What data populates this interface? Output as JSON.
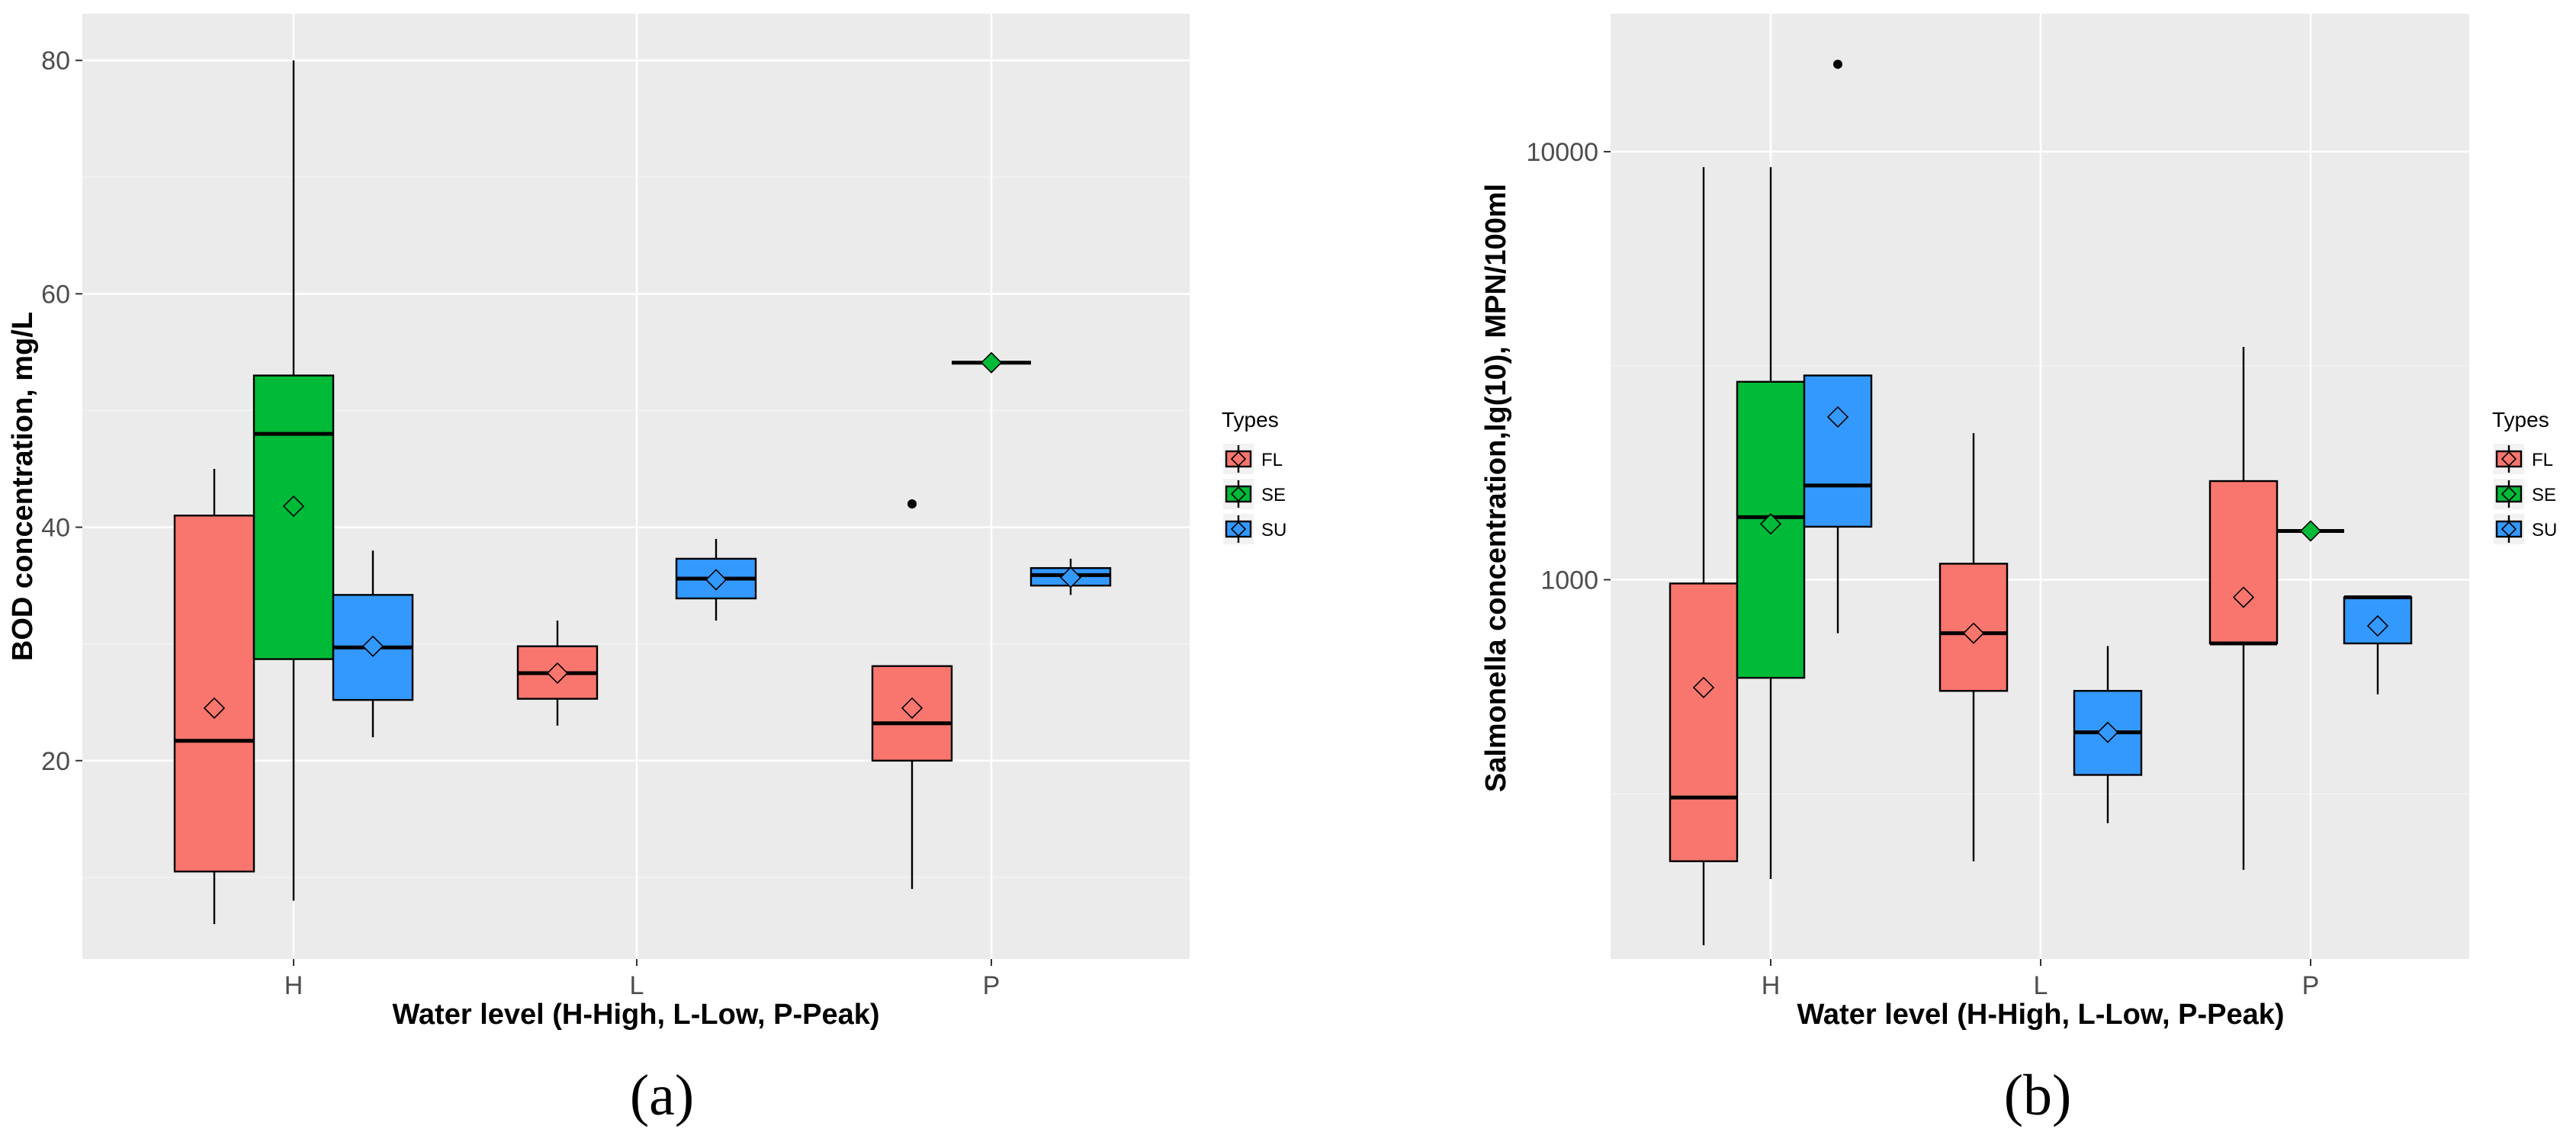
{
  "legend_title": "Types",
  "types": [
    "FL",
    "SE",
    "SU"
  ],
  "colors": {
    "FL": "#f8766d",
    "SE": "#00ba38",
    "SU": "#3399ff"
  },
  "chart_data": [
    {
      "type": "boxplot",
      "caption": "(a)",
      "xlabel": "Water level (H-High, L-Low, P-Peak)",
      "ylabel": "BOD concentration, mg/L",
      "categories": [
        "H",
        "L",
        "P"
      ],
      "ylim": [
        3,
        84
      ],
      "yticks": [
        20,
        40,
        60,
        80
      ],
      "yscale": "linear",
      "boxes": [
        {
          "category": "H",
          "type": "FL",
          "min": 6,
          "q1": 10.5,
          "median": 21.7,
          "q3": 41,
          "max": 45,
          "mean": 24.5,
          "outliers": []
        },
        {
          "category": "H",
          "type": "SE",
          "min": 8,
          "q1": 28.7,
          "median": 48,
          "q3": 53,
          "max": 80,
          "mean": 41.8,
          "outliers": []
        },
        {
          "category": "H",
          "type": "SU",
          "min": 22,
          "q1": 25.2,
          "median": 29.7,
          "q3": 34.2,
          "max": 38,
          "mean": 29.8,
          "outliers": []
        },
        {
          "category": "L",
          "type": "FL",
          "min": 23,
          "q1": 25.3,
          "median": 27.5,
          "q3": 29.8,
          "max": 32,
          "mean": 27.5,
          "outliers": []
        },
        {
          "category": "L",
          "type": "SU",
          "min": 32,
          "q1": 33.9,
          "median": 35.6,
          "q3": 37.3,
          "max": 39,
          "mean": 35.5,
          "outliers": []
        },
        {
          "category": "P",
          "type": "FL",
          "min": 9,
          "q1": 20,
          "median": 23.2,
          "q3": 28.1,
          "max": 28.1,
          "mean": 24.5,
          "outliers": [
            42
          ]
        },
        {
          "category": "P",
          "type": "SE",
          "min": 54.1,
          "q1": 54.1,
          "median": 54.1,
          "q3": 54.1,
          "max": 54.1,
          "mean": 54.1,
          "outliers": []
        },
        {
          "category": "P",
          "type": "SU",
          "min": 34.2,
          "q1": 35,
          "median": 35.9,
          "q3": 36.5,
          "max": 37.3,
          "mean": 35.7,
          "outliers": []
        }
      ]
    },
    {
      "type": "boxplot",
      "caption": "(b)",
      "xlabel": "Water level (H-High, L-Low, P-Peak)",
      "ylabel": "Salmonella concentration,lg(10), MPN/100ml",
      "categories": [
        "H",
        "L",
        "P"
      ],
      "ylim": [
        130,
        21000
      ],
      "yticks": [
        1000,
        10000
      ],
      "yscale": "log10",
      "boxes": [
        {
          "category": "H",
          "type": "FL",
          "min": 140,
          "q1": 220,
          "median": 310,
          "q3": 980,
          "max": 9200,
          "mean": 560,
          "outliers": []
        },
        {
          "category": "H",
          "type": "SE",
          "min": 200,
          "q1": 590,
          "median": 1400,
          "q3": 2900,
          "max": 9200,
          "mean": 1350,
          "outliers": []
        },
        {
          "category": "H",
          "type": "SU",
          "min": 750,
          "q1": 1330,
          "median": 1660,
          "q3": 3000,
          "max": 3000,
          "mean": 2400,
          "outliers": [
            16000
          ]
        },
        {
          "category": "L",
          "type": "FL",
          "min": 220,
          "q1": 550,
          "median": 750,
          "q3": 1090,
          "max": 2200,
          "mean": 750,
          "outliers": []
        },
        {
          "category": "L",
          "type": "SU",
          "min": 270,
          "q1": 350,
          "median": 440,
          "q3": 550,
          "max": 700,
          "mean": 440,
          "outliers": []
        },
        {
          "category": "P",
          "type": "FL",
          "min": 210,
          "q1": 710,
          "median": 710,
          "q3": 1700,
          "max": 3500,
          "mean": 910,
          "outliers": []
        },
        {
          "category": "P",
          "type": "SE",
          "min": 1300,
          "q1": 1300,
          "median": 1300,
          "q3": 1300,
          "max": 1300,
          "mean": 1300,
          "outliers": []
        },
        {
          "category": "P",
          "type": "SU",
          "min": 540,
          "q1": 710,
          "median": 910,
          "q3": 910,
          "max": 910,
          "mean": 780,
          "outliers": []
        }
      ]
    }
  ]
}
